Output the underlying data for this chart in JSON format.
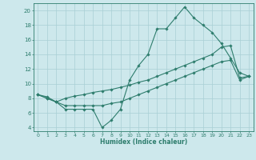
{
  "x_ticks": [
    0,
    1,
    2,
    3,
    4,
    5,
    6,
    7,
    8,
    9,
    10,
    11,
    12,
    13,
    14,
    15,
    16,
    17,
    18,
    19,
    20,
    21,
    22,
    23
  ],
  "line1_x": [
    0,
    1,
    2,
    3,
    4,
    5,
    6,
    7,
    8,
    9,
    10,
    11,
    12,
    13,
    14,
    15,
    16,
    17,
    18,
    19,
    20,
    21,
    22,
    23
  ],
  "line1_y": [
    8.5,
    8.0,
    7.5,
    6.5,
    6.5,
    6.5,
    6.5,
    4.0,
    5.0,
    6.5,
    10.5,
    12.5,
    14.0,
    17.5,
    17.5,
    19.0,
    20.5,
    19.0,
    18.0,
    17.0,
    15.5,
    13.5,
    11.5,
    11.0
  ],
  "line2_x": [
    0,
    1,
    2,
    3,
    4,
    5,
    6,
    7,
    8,
    9,
    10,
    11,
    12,
    13,
    14,
    15,
    16,
    17,
    18,
    19,
    20,
    21,
    22,
    23
  ],
  "line2_y": [
    8.5,
    8.2,
    7.5,
    8.0,
    8.3,
    8.5,
    8.8,
    9.0,
    9.2,
    9.5,
    9.8,
    10.2,
    10.5,
    11.0,
    11.5,
    12.0,
    12.5,
    13.0,
    13.5,
    14.0,
    15.0,
    15.2,
    10.8,
    11.0
  ],
  "line3_x": [
    0,
    1,
    2,
    3,
    4,
    5,
    6,
    7,
    8,
    9,
    10,
    11,
    12,
    13,
    14,
    15,
    16,
    17,
    18,
    19,
    20,
    21,
    22,
    23
  ],
  "line3_y": [
    8.5,
    8.0,
    7.5,
    7.0,
    7.0,
    7.0,
    7.0,
    7.0,
    7.3,
    7.5,
    8.0,
    8.5,
    9.0,
    9.5,
    10.0,
    10.5,
    11.0,
    11.5,
    12.0,
    12.5,
    13.0,
    13.2,
    10.5,
    11.0
  ],
  "line_color": "#2e7d6d",
  "background_color": "#cde8ec",
  "grid_color": "#a8cfd4",
  "xlabel": "Humidex (Indice chaleur)",
  "ylabel_ticks": [
    4,
    6,
    8,
    10,
    12,
    14,
    16,
    18,
    20
  ],
  "ylim": [
    3.5,
    21.0
  ],
  "xlim": [
    -0.5,
    23.5
  ],
  "marker": "D",
  "marker_size": 1.8,
  "linewidth": 0.8
}
